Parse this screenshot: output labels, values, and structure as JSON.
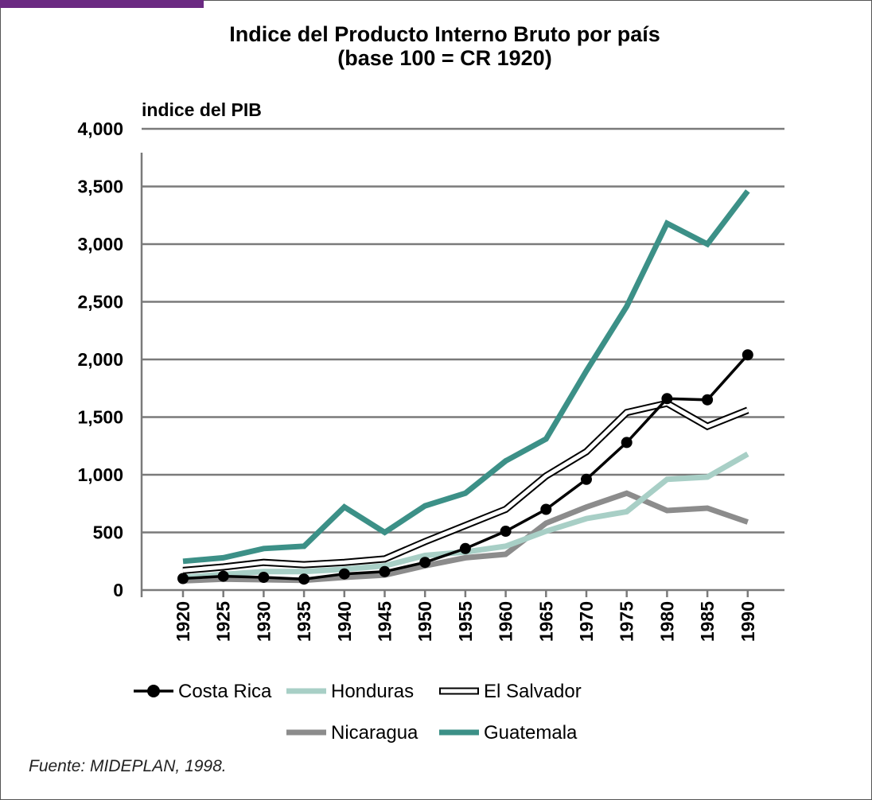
{
  "chart_data": {
    "type": "line",
    "title": "Indice del Producto Interno Bruto por país",
    "subtitle": "(base 100 = CR 1920)",
    "ylabel": "indice del PIB",
    "xlabel": "",
    "ylim": [
      0,
      4000
    ],
    "yticks": [
      "0",
      "500",
      "1,000",
      "1,500",
      "2,000",
      "2,500",
      "3,000",
      "3,500",
      "4,000"
    ],
    "ytick_values": [
      0,
      500,
      1000,
      1500,
      2000,
      2500,
      3000,
      3500,
      4000
    ],
    "categories": [
      "1920",
      "1925",
      "1930",
      "1935",
      "1940",
      "1945",
      "1950",
      "1955",
      "1960",
      "1965",
      "1970",
      "1975",
      "1980",
      "1985",
      "1990"
    ],
    "grid": "horizontal",
    "legend_position": "bottom",
    "series": [
      {
        "name": "Costa Rica",
        "style": "line-markers",
        "color": "#000000",
        "values": [
          100,
          120,
          110,
          95,
          140,
          160,
          240,
          360,
          510,
          700,
          960,
          1280,
          1660,
          1650,
          2040
        ]
      },
      {
        "name": "Honduras",
        "style": "thick",
        "color": "#a8cfc6",
        "values": [
          110,
          135,
          160,
          160,
          180,
          210,
          300,
          330,
          380,
          510,
          620,
          680,
          960,
          980,
          1180
        ]
      },
      {
        "name": "El Salvador",
        "style": "outline",
        "color": "#000000",
        "values": [
          170,
          200,
          240,
          220,
          240,
          270,
          420,
          560,
          700,
          990,
          1200,
          1540,
          1620,
          1420,
          1560
        ]
      },
      {
        "name": "Nicaragua",
        "style": "thick",
        "color": "#8c8c8c",
        "values": [
          80,
          95,
          90,
          85,
          110,
          130,
          210,
          280,
          310,
          580,
          720,
          840,
          690,
          710,
          590
        ]
      },
      {
        "name": "Guatemala",
        "style": "thick",
        "color": "#3c9087",
        "values": [
          250,
          280,
          360,
          380,
          720,
          500,
          730,
          840,
          1120,
          1310,
          1900,
          2460,
          3180,
          3000,
          3460
        ]
      }
    ]
  },
  "source": "Fuente: MIDEPLAN, 1998."
}
